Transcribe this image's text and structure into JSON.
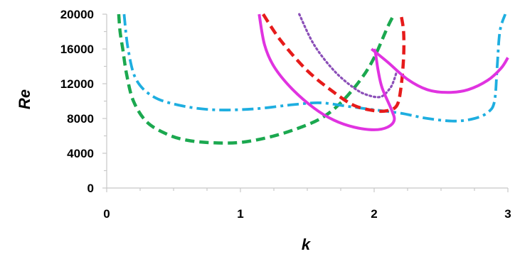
{
  "chart_data": {
    "type": "line",
    "title": "",
    "xlabel": "k",
    "ylabel": "Re",
    "xlim": [
      0,
      3
    ],
    "ylim": [
      0,
      20000
    ],
    "x_ticks": [
      "0",
      "1",
      "2",
      "3"
    ],
    "y_ticks": [
      "0",
      "4000",
      "8000",
      "12000",
      "16000",
      "20000"
    ],
    "grid": false,
    "legend": "none",
    "series": [
      {
        "color": "#1ba84f",
        "dash": "dash",
        "points": [
          [
            0.09,
            20000
          ],
          [
            0.1,
            18000
          ],
          [
            0.12,
            16000
          ],
          [
            0.15,
            13000
          ],
          [
            0.2,
            10000
          ],
          [
            0.3,
            7600
          ],
          [
            0.45,
            6200
          ],
          [
            0.6,
            5500
          ],
          [
            0.8,
            5200
          ],
          [
            1.0,
            5250
          ],
          [
            1.2,
            5800
          ],
          [
            1.4,
            6700
          ],
          [
            1.6,
            8000
          ],
          [
            1.75,
            9800
          ],
          [
            1.9,
            12500
          ],
          [
            2.0,
            15000
          ],
          [
            2.1,
            18500
          ],
          [
            2.15,
            20000
          ]
        ]
      },
      {
        "color": "#1eaee0",
        "dash": "dashdot",
        "points": [
          [
            0.13,
            20000
          ],
          [
            0.16,
            16000
          ],
          [
            0.22,
            12500
          ],
          [
            0.35,
            10500
          ],
          [
            0.55,
            9500
          ],
          [
            0.8,
            9000
          ],
          [
            1.1,
            9100
          ],
          [
            1.4,
            9600
          ],
          [
            1.6,
            9800
          ],
          [
            1.8,
            9400
          ],
          [
            2.0,
            9000
          ],
          [
            2.2,
            8600
          ],
          [
            2.4,
            8000
          ],
          [
            2.6,
            7700
          ],
          [
            2.75,
            8000
          ],
          [
            2.85,
            8700
          ],
          [
            2.9,
            10000
          ],
          [
            2.92,
            14000
          ],
          [
            2.94,
            18000
          ],
          [
            2.98,
            20000
          ]
        ]
      },
      {
        "color": "#e61b1b",
        "dash": "dash",
        "points": [
          [
            1.17,
            20000
          ],
          [
            1.3,
            17000
          ],
          [
            1.5,
            13500
          ],
          [
            1.7,
            11000
          ],
          [
            1.85,
            9500
          ],
          [
            2.0,
            8900
          ],
          [
            2.1,
            8900
          ],
          [
            2.17,
            9500
          ],
          [
            2.2,
            11500
          ],
          [
            2.22,
            15000
          ],
          [
            2.22,
            18000
          ],
          [
            2.2,
            20000
          ]
        ]
      },
      {
        "color": "#8b4fb8",
        "dash": "dot",
        "points": [
          [
            1.44,
            20000
          ],
          [
            1.55,
            16500
          ],
          [
            1.7,
            13500
          ],
          [
            1.85,
            11500
          ],
          [
            1.95,
            10700
          ],
          [
            2.05,
            10500
          ],
          [
            2.12,
            11500
          ],
          [
            2.15,
            12500
          ],
          [
            2.17,
            13500
          ]
        ]
      },
      {
        "color": "#e033e0",
        "dash": "solid",
        "points": [
          [
            1.14,
            20000
          ],
          [
            1.18,
            16500
          ],
          [
            1.25,
            14000
          ],
          [
            1.38,
            11500
          ],
          [
            1.55,
            9200
          ],
          [
            1.7,
            7800
          ],
          [
            1.85,
            7000
          ],
          [
            2.0,
            6700
          ],
          [
            2.1,
            7000
          ],
          [
            2.15,
            7800
          ],
          [
            2.13,
            9000
          ],
          [
            2.06,
            11500
          ],
          [
            2.03,
            13500
          ],
          [
            2.01,
            15500
          ],
          [
            2.0,
            16000
          ]
        ]
      },
      {
        "color": "#e033e0",
        "dash": "solid",
        "points": [
          [
            1.98,
            16000
          ],
          [
            2.1,
            14500
          ],
          [
            2.25,
            12500
          ],
          [
            2.4,
            11300
          ],
          [
            2.55,
            11000
          ],
          [
            2.7,
            11300
          ],
          [
            2.85,
            12400
          ],
          [
            2.95,
            13800
          ],
          [
            3.0,
            15000
          ]
        ]
      }
    ]
  }
}
